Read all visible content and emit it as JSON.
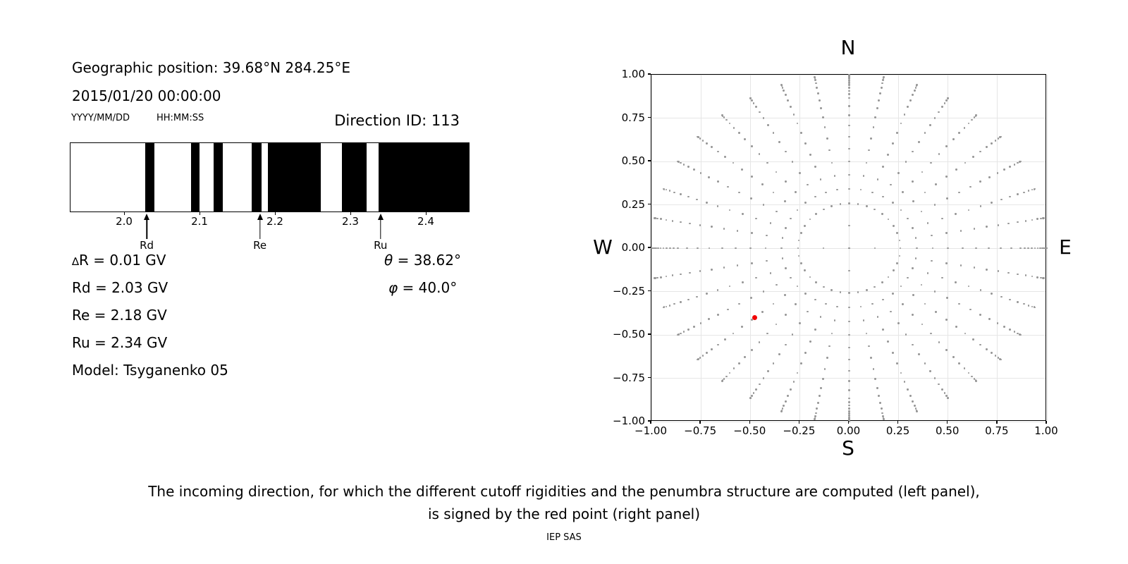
{
  "header": {
    "geo_position": "Geographic position: 39.68°N 284.25°E",
    "datetime": "2015/01/20 00:00:00",
    "date_format_label": "YYYY/MM/DD",
    "time_format_label": "HH:MM:SS",
    "direction_id_label": "Direction ID: 113"
  },
  "parameters": {
    "delta_symbol": "∆",
    "delta_rest": "R = 0.01 GV",
    "rd": "Rd = 2.03 GV",
    "re": "Re = 2.18 GV",
    "ru": "Ru = 2.34 GV",
    "model": "Model: Tsyganenko 05",
    "theta_symbol": "θ",
    "theta_rest": " = 38.62°",
    "phi_symbol": "φ",
    "phi_rest": " = 40.0°"
  },
  "direction_plot": {
    "compass": {
      "north": "N",
      "south": "S",
      "east": "E",
      "west": "W"
    },
    "x_tick_labels": [
      "−1.00",
      "−0.75",
      "−0.50",
      "−0.25",
      "0.00",
      "0.25",
      "0.50",
      "0.75",
      "1.00"
    ],
    "y_tick_labels": [
      "1.00",
      "0.75",
      "0.50",
      "0.25",
      "0.00",
      "−0.25",
      "−0.50",
      "−0.75",
      "−1.00"
    ],
    "dot_color": "#979797",
    "red_color": "#f10000",
    "grid_color": "#e6e6e6"
  },
  "caption": {
    "line1": "The incoming direction, for which the different cutoff rigidities and the penumbra structure are computed (left panel),",
    "line2": "is signed by the red point (right panel)",
    "credit": "IEP SAS"
  },
  "chart_data": [
    {
      "type": "bar",
      "subtype": "penumbra-barcode",
      "title": "Penumbra structure: black bands = forbidden rigidities, white = allowed",
      "unit": "GV",
      "xlim": [
        1.928,
        2.458
      ],
      "x_tick_values": [
        2.0,
        2.1,
        2.2,
        2.3,
        2.4
      ],
      "x_tick_labels": [
        "2.0",
        "2.1",
        "2.2",
        "2.3",
        "2.4"
      ],
      "black_bands_gv": [
        [
          2.029,
          2.041
        ],
        [
          2.089,
          2.101
        ],
        [
          2.119,
          2.131
        ],
        [
          2.17,
          2.183
        ],
        [
          2.191,
          2.261
        ],
        [
          2.289,
          2.322
        ],
        [
          2.338,
          2.458
        ]
      ],
      "markers": [
        {
          "label": "Rd",
          "gv": 2.03
        },
        {
          "label": "Re",
          "gv": 2.18
        },
        {
          "label": "Ru",
          "gv": 2.34
        }
      ]
    },
    {
      "type": "scatter",
      "subtype": "direction-grid",
      "xlim": [
        -1,
        1
      ],
      "ylim": [
        -1,
        1
      ],
      "grid": true,
      "grid_step": 0.25,
      "x_tick_values": [
        -1,
        -0.75,
        -0.5,
        -0.25,
        0,
        0.25,
        0.5,
        0.75,
        1
      ],
      "y_tick_values": [
        1,
        0.75,
        0.5,
        0.25,
        0,
        -0.25,
        -0.5,
        -0.75,
        -1
      ],
      "radius_rule": "r = sin(zenith); x = r·sin(azimuth from N), y = r·cos(azimuth from N)",
      "azimuths_deg": {
        "start": 0,
        "step": 10,
        "count": 36
      },
      "cardinal_azimuths_deg": [
        0,
        90,
        180,
        270
      ],
      "zeniths_deg_regular": [
        15,
        20,
        25,
        30,
        35,
        40,
        45,
        50,
        55,
        60,
        65,
        70,
        75,
        80,
        85,
        90
      ],
      "zeniths_deg_cardinal": [
        0,
        7.5,
        15,
        20,
        25,
        30,
        35,
        40,
        45,
        50,
        55,
        60,
        62.5,
        65,
        67.5,
        70,
        72.5,
        75,
        77.5,
        80,
        82.5,
        85,
        87.5,
        90
      ],
      "red_point": {
        "x": -0.478,
        "y": -0.401,
        "zenith_deg": 38.62,
        "azimuth_from_north_deg": 230
      }
    }
  ]
}
